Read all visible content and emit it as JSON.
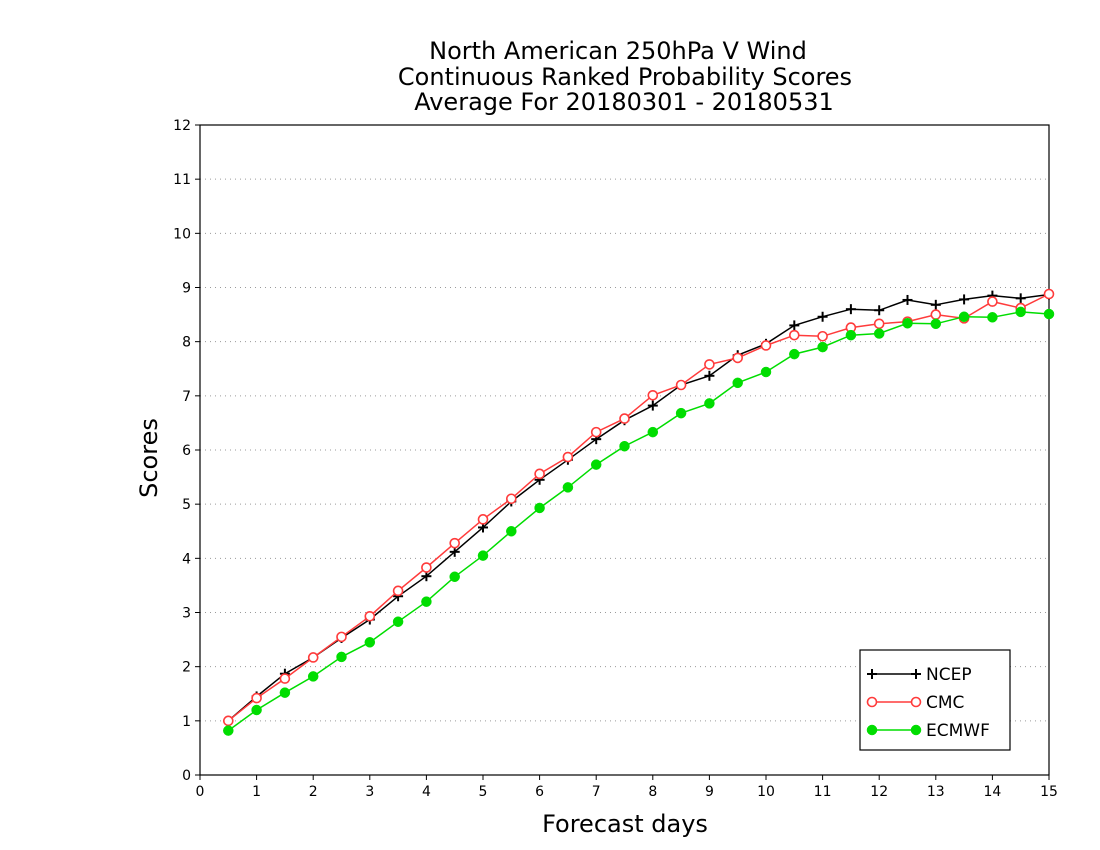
{
  "chart_data": {
    "type": "line",
    "title": [
      "North American 250hPa V Wind",
      "Continuous Ranked Probability Scores",
      "Average For 20180301 - 20180531"
    ],
    "xlabel": "Forecast days",
    "ylabel": "Scores",
    "xlim": [
      0,
      15
    ],
    "ylim": [
      0,
      12
    ],
    "xticks": [
      0,
      1,
      2,
      3,
      4,
      5,
      6,
      7,
      8,
      9,
      10,
      11,
      12,
      13,
      14,
      15
    ],
    "yticks": [
      0,
      1,
      2,
      3,
      4,
      5,
      6,
      7,
      8,
      9,
      10,
      11,
      12
    ],
    "grid": "horizontal dotted",
    "legend_position": "bottom-right",
    "x": [
      0.5,
      1,
      1.5,
      2,
      2.5,
      3,
      3.5,
      4,
      4.5,
      5,
      5.5,
      6,
      6.5,
      7,
      7.5,
      8,
      8.5,
      9,
      9.5,
      10,
      10.5,
      11,
      11.5,
      12,
      12.5,
      13,
      13.5,
      14,
      14.5,
      15
    ],
    "series": [
      {
        "name": "NCEP",
        "color": "#000000",
        "marker": "plus",
        "values": [
          1.0,
          1.45,
          1.87,
          2.17,
          2.53,
          2.87,
          3.3,
          3.67,
          4.12,
          4.57,
          5.05,
          5.45,
          5.82,
          6.2,
          6.55,
          6.82,
          7.2,
          7.37,
          7.75,
          7.96,
          8.3,
          8.46,
          8.6,
          8.58,
          8.77,
          8.68,
          8.78,
          8.85,
          8.8,
          8.87
        ]
      },
      {
        "name": "CMC",
        "color": "#ff3b3b",
        "marker": "open-circle",
        "values": [
          1.0,
          1.42,
          1.78,
          2.17,
          2.55,
          2.93,
          3.4,
          3.83,
          4.28,
          4.72,
          5.1,
          5.56,
          5.87,
          6.33,
          6.58,
          7.01,
          7.2,
          7.58,
          7.7,
          7.93,
          8.12,
          8.1,
          8.26,
          8.33,
          8.37,
          8.5,
          8.43,
          8.74,
          8.62,
          8.88
        ]
      },
      {
        "name": "ECMWF",
        "color": "#00dd00",
        "marker": "filled-circle",
        "values": [
          0.82,
          1.2,
          1.52,
          1.82,
          2.18,
          2.45,
          2.83,
          3.2,
          3.66,
          4.05,
          4.5,
          4.93,
          5.31,
          5.73,
          6.07,
          6.33,
          6.68,
          6.86,
          7.24,
          7.44,
          7.77,
          7.9,
          8.12,
          8.15,
          8.34,
          8.33,
          8.46,
          8.45,
          8.55,
          8.51
        ]
      }
    ]
  }
}
